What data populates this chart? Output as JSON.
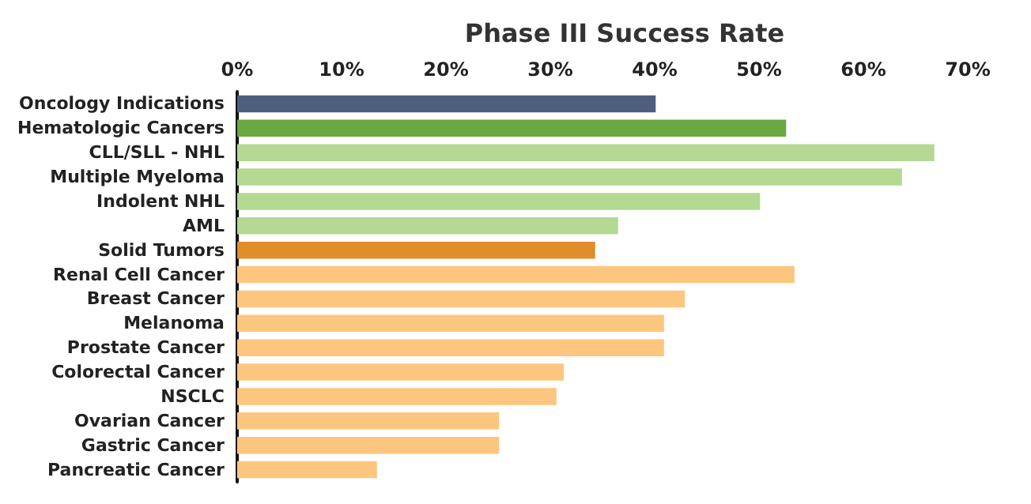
{
  "chart_data": {
    "type": "bar",
    "orientation": "horizontal",
    "title": "Phase III Success Rate",
    "categories": [
      "Oncology Indications",
      "Hematologic Cancers",
      "CLL/SLL - NHL",
      "Multiple Myeloma",
      "Indolent NHL",
      "AML",
      "Solid Tumors",
      "Renal Cell Cancer",
      "Breast Cancer",
      "Melanoma",
      "Prostate Cancer",
      "Colorectal Cancer",
      "NSCLC",
      "Ovarian Cancer",
      "Gastric Cancer",
      "Pancreatic Cancer"
    ],
    "values": [
      40.1,
      52.6,
      66.8,
      63.7,
      50.1,
      36.5,
      34.3,
      53.4,
      42.9,
      40.9,
      40.9,
      31.3,
      30.6,
      25.1,
      25.1,
      13.4
    ],
    "colors": [
      "#4e5f7d",
      "#6aa842",
      "#b5d893",
      "#b5d893",
      "#b5d893",
      "#b5d893",
      "#e08d2a",
      "#fdc67e",
      "#fdc67e",
      "#fdc67e",
      "#fdc67e",
      "#fdc67e",
      "#fdc67e",
      "#fdc67e",
      "#fdc67e",
      "#fdc67e"
    ],
    "xlim": [
      0,
      70
    ],
    "xticks": [
      {
        "value": 0,
        "label": "0%"
      },
      {
        "value": 10,
        "label": "10%"
      },
      {
        "value": 20,
        "label": "20%"
      },
      {
        "value": 30,
        "label": "30%"
      },
      {
        "value": 40,
        "label": "40%"
      },
      {
        "value": 50,
        "label": "50%"
      },
      {
        "value": 60,
        "label": "60%"
      },
      {
        "value": 70,
        "label": "70%"
      }
    ],
    "grid": false
  }
}
